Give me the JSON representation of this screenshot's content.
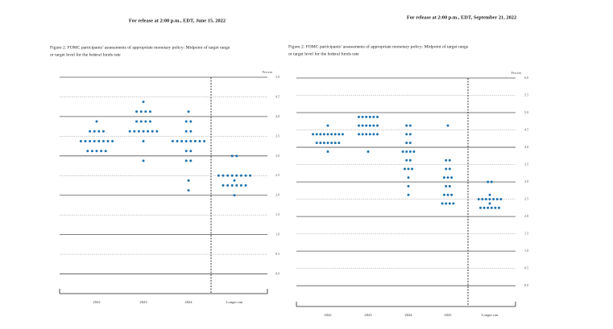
{
  "chart_data": [
    {
      "type": "dotplot",
      "header": "For release at 2:00 p.m., EDT, June 15, 2022",
      "caption_lines": [
        "Figure 2.  FOMC participants’ assessments of appropriate monetary policy:  Midpoint of target range",
        "or target level for the federal funds rate"
      ],
      "y_label": "Percent",
      "ylim": [
        -0.5,
        5.0
      ],
      "yticks": [
        {
          "value": 0,
          "label": "0.0"
        },
        0.5,
        {
          "value": 1,
          "label": "1.0"
        },
        1.5,
        {
          "value": 2,
          "label": "2.0"
        },
        2.5,
        {
          "value": 3,
          "label": "3.0"
        },
        3.5,
        {
          "value": 4,
          "label": "4.0"
        },
        4.5,
        {
          "value": 5,
          "label": "5.0"
        }
      ],
      "color": "#1f72ad",
      "columns": [
        {
          "label": "2022",
          "dots": [
            {
              "y": 3.875,
              "n": 1
            },
            {
              "y": 3.625,
              "n": 4
            },
            {
              "y": 3.375,
              "n": 8
            },
            {
              "y": 3.125,
              "n": 5
            }
          ]
        },
        {
          "label": "2023",
          "dots": [
            {
              "y": 4.375,
              "n": 1
            },
            {
              "y": 4.125,
              "n": 4
            },
            {
              "y": 3.875,
              "n": 4
            },
            {
              "y": 3.625,
              "n": 7
            },
            {
              "y": 3.375,
              "n": 1
            },
            {
              "y": 2.875,
              "n": 1
            }
          ]
        },
        {
          "label": "2024",
          "dots": [
            {
              "y": 4.125,
              "n": 1
            },
            {
              "y": 3.875,
              "n": 2
            },
            {
              "y": 3.625,
              "n": 2
            },
            {
              "y": 3.375,
              "n": 8
            },
            {
              "y": 3.125,
              "n": 2
            },
            {
              "y": 2.875,
              "n": 2
            },
            {
              "y": 2.375,
              "n": 1
            },
            {
              "y": 2.125,
              "n": 1
            }
          ]
        },
        {
          "label": "Longer run",
          "dots": [
            {
              "y": 3.0,
              "n": 2
            },
            {
              "y": 2.5,
              "n": 8
            },
            {
              "y": 2.375,
              "n": 1
            },
            {
              "y": 2.25,
              "n": 6
            },
            {
              "y": 2.0,
              "n": 1
            }
          ]
        }
      ]
    },
    {
      "type": "dotplot",
      "header": "For release at 2:00 p.m., EDT, September 21, 2022",
      "caption_lines": [
        "Figure 2.  FOMC participants’ assessments of appropriate monetary policy:  Midpoint of target range",
        "or target level for the federal funds rate"
      ],
      "y_label": "Percent",
      "ylim": [
        -0.6,
        6.0
      ],
      "yticks": [
        {
          "value": 0,
          "label": "0.0"
        },
        0.5,
        {
          "value": 1,
          "label": "1.0"
        },
        1.5,
        {
          "value": 2,
          "label": "2.0"
        },
        2.5,
        {
          "value": 3,
          "label": "3.0"
        },
        3.5,
        {
          "value": 4,
          "label": "4.0"
        },
        4.5,
        {
          "value": 5,
          "label": "5.0"
        },
        5.5,
        {
          "value": 6,
          "label": "6.0"
        }
      ],
      "color": "#1f72ad",
      "columns": [
        {
          "label": "2022",
          "dots": [
            {
              "y": 4.625,
              "n": 1
            },
            {
              "y": 4.375,
              "n": 9
            },
            {
              "y": 4.125,
              "n": 7
            },
            {
              "y": 3.875,
              "n": 1
            }
          ]
        },
        {
          "label": "2023",
          "dots": [
            {
              "y": 4.875,
              "n": 6
            },
            {
              "y": 4.625,
              "n": 6
            },
            {
              "y": 4.375,
              "n": 6
            },
            {
              "y": 3.875,
              "n": 1
            }
          ]
        },
        {
          "label": "2024",
          "dots": [
            {
              "y": 4.625,
              "n": 2
            },
            {
              "y": 4.375,
              "n": 2
            },
            {
              "y": 4.125,
              "n": 2
            },
            {
              "y": 3.875,
              "n": 4
            },
            {
              "y": 3.625,
              "n": 2
            },
            {
              "y": 3.375,
              "n": 3
            },
            {
              "y": 3.125,
              "n": 1
            },
            {
              "y": 2.875,
              "n": 1
            },
            {
              "y": 2.625,
              "n": 1
            }
          ]
        },
        {
          "label": "2025",
          "dots": [
            {
              "y": 4.625,
              "n": 1
            },
            {
              "y": 3.625,
              "n": 2
            },
            {
              "y": 3.375,
              "n": 2
            },
            {
              "y": 3.125,
              "n": 3
            },
            {
              "y": 2.875,
              "n": 2
            },
            {
              "y": 2.625,
              "n": 3
            },
            {
              "y": 2.375,
              "n": 4
            }
          ]
        },
        {
          "label": "Longer run",
          "dots": [
            {
              "y": 3.0,
              "n": 2
            },
            {
              "y": 2.625,
              "n": 1
            },
            {
              "y": 2.5,
              "n": 7
            },
            {
              "y": 2.375,
              "n": 1
            },
            {
              "y": 2.25,
              "n": 6
            }
          ]
        }
      ]
    }
  ]
}
